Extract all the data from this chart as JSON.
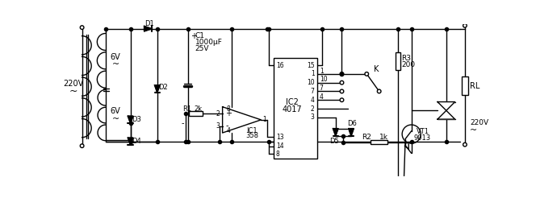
{
  "bg_color": "#ffffff",
  "line_color": "#000000",
  "lw": 1.0,
  "figsize": [
    6.64,
    2.46
  ],
  "dpi": 100,
  "labels": {
    "v220_primary": "220V",
    "tilde": "~",
    "v6_top": "6V",
    "v6_bot": "6V",
    "D1": "D1",
    "D2": "D2",
    "D3": "D3",
    "D4": "D4",
    "C1": "C1",
    "C1_val": "1000μF",
    "C1_v": "25V",
    "C1_plus": "+",
    "minus_sign": "-",
    "R1": "R1",
    "R1_val": "2k",
    "pin2": "2",
    "pin3": "3",
    "pin4": "4",
    "pin8": "8",
    "pin1": "1",
    "IC1": "IC1",
    "IC1_sub": "358",
    "IC2_16": "16",
    "IC2_15": "15",
    "IC2_14": "14",
    "IC2_8": "8",
    "IC2_13": "13",
    "IC2_1": "1",
    "IC2_10": "10",
    "IC2_7": "7",
    "IC2_4": "4",
    "IC2_2": "2",
    "IC2_3": "3",
    "IC2": "IC2",
    "IC2_sub": "4017",
    "K": "K",
    "D5": "D5",
    "D6": "D6",
    "R2": "R2",
    "R2_val": "1k",
    "R3": "R3",
    "R3_val": "200",
    "VT1": "VT1",
    "VT1_sub": "9013",
    "RL": "RL",
    "v220_out": "220V"
  }
}
